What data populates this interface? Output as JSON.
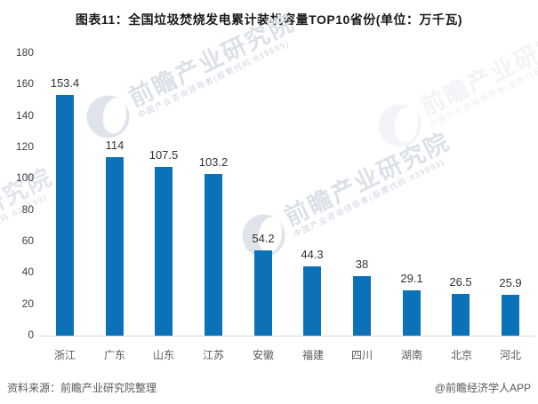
{
  "chart_data": {
    "type": "bar",
    "title": "图表11：全国垃圾焚烧发电累计装机容量TOP10省份(单位：万千瓦)",
    "categories": [
      "浙江",
      "广东",
      "山东",
      "江苏",
      "安徽",
      "福建",
      "四川",
      "湖南",
      "北京",
      "河北"
    ],
    "values": [
      153.4,
      114,
      107.5,
      103.2,
      54.2,
      44.3,
      38,
      29.1,
      26.5,
      25.9
    ],
    "value_labels": [
      "153.4",
      "114",
      "107.5",
      "103.2",
      "54.2",
      "44.3",
      "38",
      "29.1",
      "26.5",
      "25.9"
    ],
    "unit": "万千瓦",
    "xlabel": "",
    "ylabel": "",
    "ylim": [
      0,
      180
    ],
    "yticks": [
      0,
      20,
      40,
      60,
      80,
      100,
      120,
      140,
      160,
      180
    ],
    "grid": false,
    "legend": "none",
    "data_labels": true,
    "bar_color": "#0c72b7",
    "axis_line_color": "#d9d9d9"
  },
  "footer": {
    "source": "资料来源：前瞻产业研究院整理",
    "credit": "@前瞻经济学人APP"
  },
  "watermark": {
    "brand": "前瞻产业研究院",
    "tagline": "中国产业咨询领导者(股票代码:839599)"
  }
}
